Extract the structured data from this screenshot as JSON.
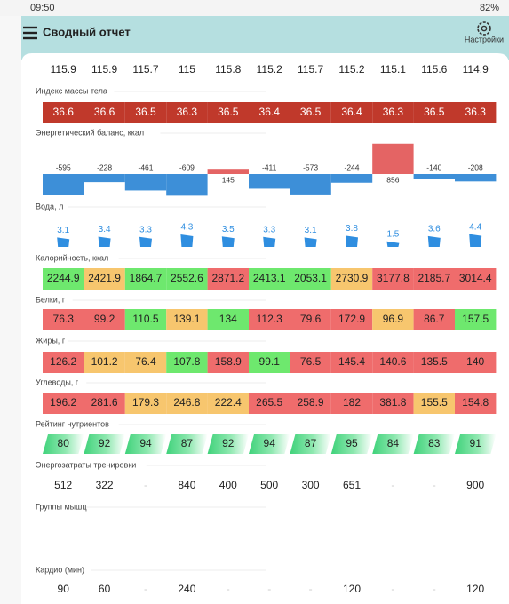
{
  "status": {
    "time": "09:50",
    "battery": "82%"
  },
  "header": {
    "title": "Сводный отчет",
    "settings": "Настройки"
  },
  "sections": [
    {
      "kind": "text",
      "values": [
        115.9,
        115.9,
        115.7,
        115,
        115.8,
        115.2,
        115.7,
        115.2,
        115.1,
        115.6,
        114.9
      ]
    },
    {
      "label": "Индекс массы тела",
      "kind": "cells",
      "values": [
        36.6,
        36.6,
        36.5,
        36.3,
        36.5,
        36.4,
        36.5,
        36.4,
        36.3,
        36.5,
        36.3
      ],
      "colors": [
        "#c0392b",
        "#c0392b",
        "#c0392b",
        "#c0392b",
        "#c0392b",
        "#c0392b",
        "#c0392b",
        "#c0392b",
        "#c0392b",
        "#c0392b",
        "#c0392b"
      ]
    },
    {
      "label": "Энергетический баланс, ккал",
      "kind": "balance",
      "values": [
        -595,
        -228,
        -461,
        -609,
        145,
        -411,
        -573,
        -244,
        856,
        -140,
        -208
      ],
      "positive_color": "#e46464",
      "negative_color": "#3d8fd8"
    },
    {
      "label": "Вода, л",
      "kind": "water",
      "values": [
        3.1,
        3.4,
        3.3,
        4.3,
        3.5,
        3.3,
        3.1,
        3.8,
        1.5,
        3.6,
        4.4
      ],
      "color": "#2f8ee0"
    },
    {
      "label": "Калорийность, ккал",
      "kind": "cells",
      "values": [
        2244.9,
        2421.9,
        1864.7,
        2552.6,
        2871.2,
        2413.1,
        2053.1,
        2730.9,
        3177.8,
        2185.7,
        3014.4
      ],
      "colors": [
        "#6ee86e",
        "#f7c66e",
        "#6ee86e",
        "#6ee86e",
        "#ef6c6c",
        "#6ee86e",
        "#6ee86e",
        "#f7c66e",
        "#ef6c6c",
        "#ef6c6c",
        "#ef6c6c"
      ]
    },
    {
      "label": "Белки, г",
      "kind": "cells",
      "values": [
        76.3,
        99.2,
        110.5,
        139.1,
        134,
        112.3,
        79.6,
        172.9,
        96.9,
        86.7,
        157.5
      ],
      "colors": [
        "#ef6c6c",
        "#ef6c6c",
        "#6ee86e",
        "#f7c66e",
        "#6ee86e",
        "#ef6c6c",
        "#ef6c6c",
        "#ef6c6c",
        "#f7c66e",
        "#ef6c6c",
        "#6ee86e"
      ]
    },
    {
      "label": "Жиры, г",
      "kind": "cells",
      "values": [
        126.2,
        101.2,
        76.4,
        107.8,
        158.9,
        99.1,
        76.5,
        145.4,
        140.6,
        135.5,
        140
      ],
      "colors": [
        "#ef6c6c",
        "#f7c66e",
        "#f7c66e",
        "#6ee86e",
        "#ef6c6c",
        "#6ee86e",
        "#ef6c6c",
        "#ef6c6c",
        "#ef6c6c",
        "#ef6c6c",
        "#ef6c6c"
      ]
    },
    {
      "label": "Углеводы, г",
      "kind": "cells",
      "values": [
        196.2,
        281.6,
        179.3,
        246.8,
        222.4,
        265.5,
        258.9,
        182,
        381.8,
        155.5,
        154.8
      ],
      "colors": [
        "#ef6c6c",
        "#ef6c6c",
        "#f7c66e",
        "#f7c66e",
        "#f7c66e",
        "#ef6c6c",
        "#ef6c6c",
        "#ef6c6c",
        "#ef6c6c",
        "#f7c66e",
        "#ef6c6c"
      ]
    },
    {
      "label": "Рейтинг нутриентов",
      "kind": "rating",
      "values": [
        80,
        92,
        94,
        87,
        92,
        94,
        87,
        95,
        84,
        83,
        91
      ],
      "color": "#3fd27a"
    },
    {
      "label": "Энергозатраты тренировки",
      "kind": "text",
      "values": [
        512,
        322,
        "-",
        840,
        400,
        500,
        300,
        651,
        "-",
        "-",
        900
      ]
    },
    {
      "label": "Группы мышц",
      "kind": "empty"
    },
    {
      "label": "Кардио (мин)",
      "kind": "text",
      "values": [
        90,
        60,
        "-",
        240,
        "-",
        "-",
        "-",
        120,
        "-",
        "-",
        120
      ]
    }
  ]
}
